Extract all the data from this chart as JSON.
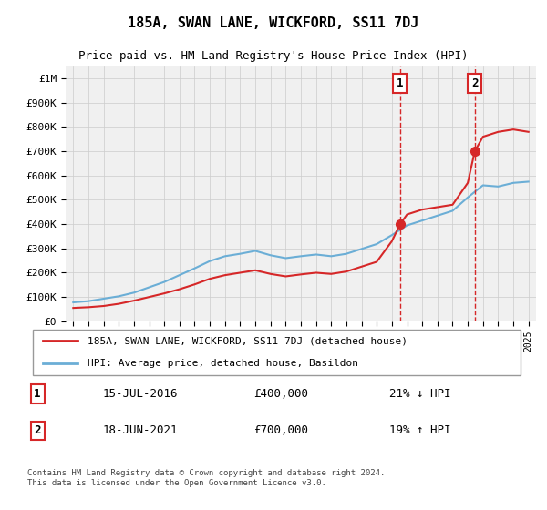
{
  "title": "185A, SWAN LANE, WICKFORD, SS11 7DJ",
  "subtitle": "Price paid vs. HM Land Registry's House Price Index (HPI)",
  "red_label": "185A, SWAN LANE, WICKFORD, SS11 7DJ (detached house)",
  "blue_label": "HPI: Average price, detached house, Basildon",
  "footnote": "Contains HM Land Registry data © Crown copyright and database right 2024.\nThis data is licensed under the Open Government Licence v3.0.",
  "sale1_date": "15-JUL-2016",
  "sale1_price": 400000,
  "sale1_pct": "21% ↓ HPI",
  "sale2_date": "18-JUN-2021",
  "sale2_price": 700000,
  "sale2_pct": "19% ↑ HPI",
  "sale1_year": 2016.54,
  "sale2_year": 2021.46,
  "ylim": [
    0,
    1050000
  ],
  "xlim_start": 1995,
  "xlim_end": 2025.5,
  "hpi_color": "#6baed6",
  "price_color": "#d62728",
  "vline_color": "#d62728",
  "grid_color": "#cccccc",
  "bg_color": "#ffffff",
  "plot_bg": "#f0f0f0",
  "hpi_years": [
    1995,
    1996,
    1997,
    1998,
    1999,
    2000,
    2001,
    2002,
    2003,
    2004,
    2005,
    2006,
    2007,
    2008,
    2009,
    2010,
    2011,
    2012,
    2013,
    2014,
    2015,
    2016,
    2017,
    2018,
    2019,
    2020,
    2021,
    2022,
    2023,
    2024,
    2025
  ],
  "hpi_values": [
    78000,
    83000,
    93000,
    103000,
    118000,
    140000,
    162000,
    190000,
    218000,
    248000,
    268000,
    278000,
    290000,
    272000,
    260000,
    268000,
    275000,
    268000,
    278000,
    298000,
    318000,
    355000,
    395000,
    415000,
    435000,
    455000,
    510000,
    560000,
    555000,
    570000,
    575000
  ],
  "price_years": [
    1995,
    1996,
    1997,
    1998,
    1999,
    2000,
    2001,
    2002,
    2003,
    2004,
    2005,
    2006,
    2007,
    2008,
    2009,
    2010,
    2011,
    2012,
    2013,
    2014,
    2015,
    2016,
    2016.54,
    2017,
    2018,
    2019,
    2020,
    2021,
    2021.46,
    2022,
    2023,
    2024,
    2025
  ],
  "price_values": [
    55000,
    58000,
    63000,
    72000,
    85000,
    100000,
    115000,
    132000,
    152000,
    175000,
    190000,
    200000,
    210000,
    195000,
    185000,
    193000,
    200000,
    195000,
    205000,
    225000,
    245000,
    330000,
    400000,
    440000,
    460000,
    470000,
    480000,
    570000,
    700000,
    760000,
    780000,
    790000,
    780000
  ],
  "ytick_labels": [
    "£0",
    "£100K",
    "£200K",
    "£300K",
    "£400K",
    "£500K",
    "£600K",
    "£700K",
    "£800K",
    "£900K",
    "£1M"
  ],
  "ytick_values": [
    0,
    100000,
    200000,
    300000,
    400000,
    500000,
    600000,
    700000,
    800000,
    900000,
    1000000
  ]
}
